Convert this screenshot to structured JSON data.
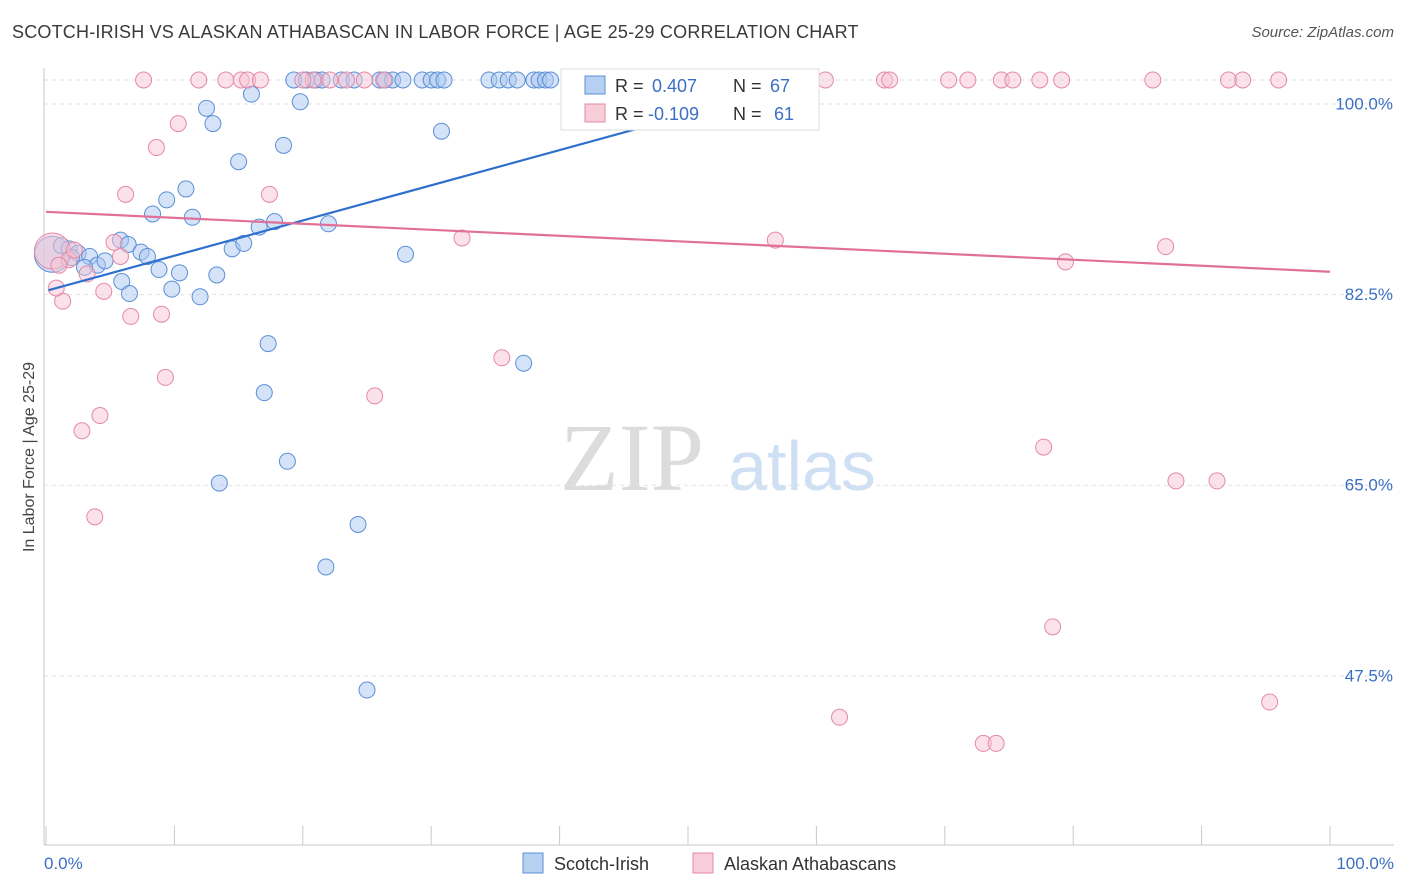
{
  "chart_data": {
    "type": "scatter",
    "title": "SCOTCH-IRISH VS ALASKAN ATHABASCAN IN LABOR FORCE | AGE 25-29 CORRELATION CHART",
    "source": "Source: ZipAtlas.com",
    "watermark": {
      "zip": "ZIP",
      "atlas": "atlas"
    },
    "ylabel": "In Labor Force | Age 25-29",
    "xlim": [
      0,
      100
    ],
    "ylim": [
      30,
      101.5
    ],
    "x_tick_labels": [
      "0.0%",
      "100.0%"
    ],
    "y_ticks": [
      {
        "value": 100.0,
        "label": "100.0%"
      },
      {
        "value": 82.5,
        "label": "82.5%"
      },
      {
        "value": 65.0,
        "label": "65.0%"
      },
      {
        "value": 47.5,
        "label": "47.5%"
      }
    ],
    "legend_placement": "top-center",
    "stats": [
      {
        "r_label": "R =",
        "r_value": "0.407",
        "n_label": "N =",
        "n_value": "67"
      },
      {
        "r_label": "R =",
        "r_value": "-0.109",
        "n_label": "N =",
        "n_value": "61"
      }
    ],
    "series": [
      {
        "name": "Scotch-Irish",
        "color_fill": "#a9c8f0",
        "color_stroke": "#5b8fd6",
        "trend_color": "#2f6fce",
        "trend": {
          "x": [
            0.2,
            50
          ],
          "y": [
            81.2,
            97.3
          ],
          "dashed_x": [
            50,
            50.5,
            56
          ],
          "dashed_y_end": 99.2
        },
        "points": [
          {
            "x": 0.5,
            "y": 84.5,
            "big": true
          },
          {
            "x": 1.2,
            "y": 85.3
          },
          {
            "x": 1.8,
            "y": 85.0
          },
          {
            "x": 2.5,
            "y": 84.6
          },
          {
            "x": 3.4,
            "y": 84.3
          },
          {
            "x": 4.0,
            "y": 83.5
          },
          {
            "x": 4.6,
            "y": 83.9
          },
          {
            "x": 5.8,
            "y": 85.8
          },
          {
            "x": 6.4,
            "y": 85.4
          },
          {
            "x": 5.9,
            "y": 82.0
          },
          {
            "x": 6.5,
            "y": 80.9
          },
          {
            "x": 7.4,
            "y": 84.7
          },
          {
            "x": 7.9,
            "y": 84.3
          },
          {
            "x": 8.3,
            "y": 88.2
          },
          {
            "x": 8.8,
            "y": 83.1
          },
          {
            "x": 9.4,
            "y": 89.5
          },
          {
            "x": 9.8,
            "y": 81.3
          },
          {
            "x": 10.4,
            "y": 82.8
          },
          {
            "x": 10.9,
            "y": 90.5
          },
          {
            "x": 11.4,
            "y": 87.9
          },
          {
            "x": 12.0,
            "y": 80.6
          },
          {
            "x": 12.5,
            "y": 97.9
          },
          {
            "x": 13.0,
            "y": 96.5
          },
          {
            "x": 13.3,
            "y": 82.6
          },
          {
            "x": 14.5,
            "y": 85.0
          },
          {
            "x": 15.0,
            "y": 93.0
          },
          {
            "x": 15.4,
            "y": 85.5
          },
          {
            "x": 16.0,
            "y": 99.2
          },
          {
            "x": 16.6,
            "y": 87.0
          },
          {
            "x": 17.0,
            "y": 71.8
          },
          {
            "x": 17.3,
            "y": 76.3
          },
          {
            "x": 17.8,
            "y": 87.5
          },
          {
            "x": 18.5,
            "y": 94.5
          },
          {
            "x": 18.8,
            "y": 65.5
          },
          {
            "x": 19.3,
            "y": 100.5
          },
          {
            "x": 19.8,
            "y": 98.5
          },
          {
            "x": 20.3,
            "y": 100.5
          },
          {
            "x": 21.0,
            "y": 100.5
          },
          {
            "x": 21.5,
            "y": 100.5
          },
          {
            "x": 21.8,
            "y": 55.8
          },
          {
            "x": 22.0,
            "y": 87.3
          },
          {
            "x": 23.0,
            "y": 100.5
          },
          {
            "x": 24.0,
            "y": 100.5
          },
          {
            "x": 24.3,
            "y": 59.7
          },
          {
            "x": 25.0,
            "y": 44.5
          },
          {
            "x": 26.0,
            "y": 100.5
          },
          {
            "x": 26.4,
            "y": 100.5
          },
          {
            "x": 27.0,
            "y": 100.5
          },
          {
            "x": 27.8,
            "y": 100.5
          },
          {
            "x": 28.0,
            "y": 84.5
          },
          {
            "x": 29.3,
            "y": 100.5
          },
          {
            "x": 30.0,
            "y": 100.5
          },
          {
            "x": 30.5,
            "y": 100.5
          },
          {
            "x": 30.8,
            "y": 95.8
          },
          {
            "x": 31.0,
            "y": 100.5
          },
          {
            "x": 34.5,
            "y": 100.5
          },
          {
            "x": 35.3,
            "y": 100.5
          },
          {
            "x": 36.0,
            "y": 100.5
          },
          {
            "x": 36.7,
            "y": 100.5
          },
          {
            "x": 37.2,
            "y": 74.5
          },
          {
            "x": 38.0,
            "y": 100.5
          },
          {
            "x": 38.4,
            "y": 100.5
          },
          {
            "x": 38.9,
            "y": 100.5
          },
          {
            "x": 39.3,
            "y": 100.5
          },
          {
            "x": 13.5,
            "y": 63.5
          },
          {
            "x": 3.0,
            "y": 83.3
          },
          {
            "x": 2.0,
            "y": 84.2
          }
        ]
      },
      {
        "name": "Alaskan Athabascans",
        "color_fill": "#f7c4d3",
        "color_stroke": "#e489a6",
        "trend_color": "#e0709a",
        "trend": {
          "x": [
            0,
            100
          ],
          "y": [
            88.4,
            82.9
          ]
        },
        "points": [
          {
            "x": 0.5,
            "y": 84.8,
            "big": true
          },
          {
            "x": 1.3,
            "y": 80.2
          },
          {
            "x": 1.8,
            "y": 84.0
          },
          {
            "x": 3.2,
            "y": 82.7
          },
          {
            "x": 3.8,
            "y": 60.4
          },
          {
            "x": 2.8,
            "y": 68.3
          },
          {
            "x": 4.2,
            "y": 69.7
          },
          {
            "x": 4.5,
            "y": 81.1
          },
          {
            "x": 5.3,
            "y": 85.6
          },
          {
            "x": 6.2,
            "y": 90.0
          },
          {
            "x": 6.6,
            "y": 78.8
          },
          {
            "x": 7.6,
            "y": 100.5
          },
          {
            "x": 8.6,
            "y": 94.3
          },
          {
            "x": 9.0,
            "y": 79.0
          },
          {
            "x": 9.3,
            "y": 73.2
          },
          {
            "x": 10.3,
            "y": 96.5
          },
          {
            "x": 11.9,
            "y": 100.5
          },
          {
            "x": 15.2,
            "y": 100.5
          },
          {
            "x": 15.7,
            "y": 100.5
          },
          {
            "x": 16.7,
            "y": 100.5
          },
          {
            "x": 17.4,
            "y": 90.0
          },
          {
            "x": 20.8,
            "y": 100.5
          },
          {
            "x": 22.1,
            "y": 100.5
          },
          {
            "x": 23.4,
            "y": 100.5
          },
          {
            "x": 25.6,
            "y": 71.5
          },
          {
            "x": 26.3,
            "y": 100.5
          },
          {
            "x": 32.4,
            "y": 86.0
          },
          {
            "x": 35.5,
            "y": 75.0
          },
          {
            "x": 53.0,
            "y": 100.5
          },
          {
            "x": 53.6,
            "y": 100.5
          },
          {
            "x": 56.8,
            "y": 85.8
          },
          {
            "x": 60.7,
            "y": 100.5
          },
          {
            "x": 61.8,
            "y": 42.0
          },
          {
            "x": 65.3,
            "y": 100.5
          },
          {
            "x": 65.7,
            "y": 100.5
          },
          {
            "x": 70.3,
            "y": 100.5
          },
          {
            "x": 71.8,
            "y": 100.5
          },
          {
            "x": 73.0,
            "y": 39.6
          },
          {
            "x": 74.0,
            "y": 39.6
          },
          {
            "x": 74.4,
            "y": 100.5
          },
          {
            "x": 75.3,
            "y": 100.5
          },
          {
            "x": 77.4,
            "y": 100.5
          },
          {
            "x": 77.7,
            "y": 66.8
          },
          {
            "x": 78.4,
            "y": 50.3
          },
          {
            "x": 79.1,
            "y": 100.5
          },
          {
            "x": 79.4,
            "y": 83.8
          },
          {
            "x": 86.2,
            "y": 100.5
          },
          {
            "x": 87.2,
            "y": 85.2
          },
          {
            "x": 88.0,
            "y": 63.7
          },
          {
            "x": 91.2,
            "y": 63.7
          },
          {
            "x": 92.1,
            "y": 100.5
          },
          {
            "x": 93.2,
            "y": 100.5
          },
          {
            "x": 95.3,
            "y": 43.4
          },
          {
            "x": 96.0,
            "y": 100.5
          },
          {
            "x": 2.2,
            "y": 84.9
          },
          {
            "x": 1.0,
            "y": 83.5
          },
          {
            "x": 5.8,
            "y": 84.3
          },
          {
            "x": 0.8,
            "y": 81.4
          },
          {
            "x": 20.0,
            "y": 100.5
          },
          {
            "x": 14.0,
            "y": 100.5
          },
          {
            "x": 24.8,
            "y": 100.5
          }
        ]
      }
    ]
  }
}
